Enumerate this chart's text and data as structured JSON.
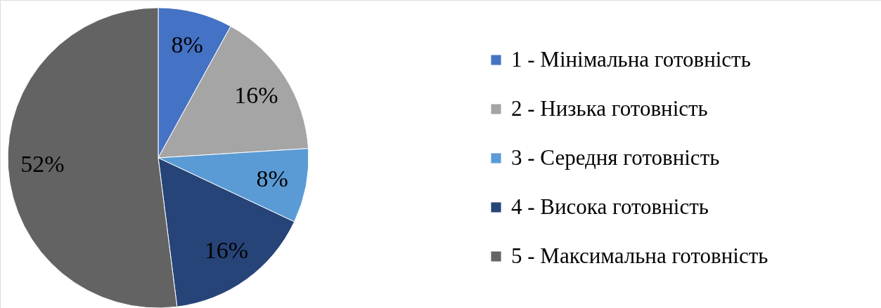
{
  "chart_data": {
    "type": "pie",
    "categories": [
      "1 - Мінімальна готовність",
      "2 - Низька готовність",
      "3 - Середня готовність",
      "4 - Висока готовність",
      "5 - Максимальна готовність"
    ],
    "values": [
      8,
      16,
      8,
      16,
      52
    ],
    "colors": [
      "#4472c4",
      "#a5a5a5",
      "#5b9bd5",
      "#264478",
      "#636363"
    ],
    "value_labels": [
      "8%",
      "16%",
      "8%",
      "16%",
      "52%"
    ],
    "legend": "right"
  }
}
